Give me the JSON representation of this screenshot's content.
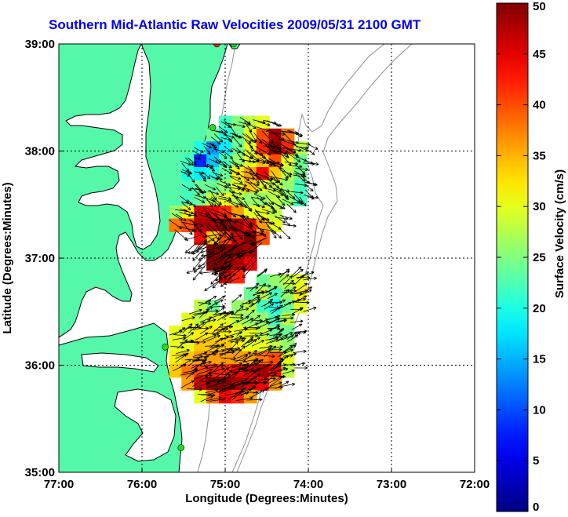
{
  "chart_data": {
    "type": "heatmap",
    "title": "Southern Mid-Atlantic Raw Velocities 2009/05/31 2100 GMT",
    "xlabel": "Longitude (Degrees:Minutes)",
    "ylabel": "Latitude (Degrees:Minutes)",
    "xlim": [
      -77,
      -72
    ],
    "ylim": [
      35,
      39
    ],
    "x_ticks": [
      {
        "value": -77,
        "label": "77:00"
      },
      {
        "value": -76,
        "label": "76:00"
      },
      {
        "value": -75,
        "label": "75:00"
      },
      {
        "value": -74,
        "label": "74:00"
      },
      {
        "value": -73,
        "label": "73:00"
      },
      {
        "value": -72,
        "label": "72:00"
      }
    ],
    "y_ticks": [
      {
        "value": 35,
        "label": "35:00"
      },
      {
        "value": 36,
        "label": "36:00"
      },
      {
        "value": 37,
        "label": "37:00"
      },
      {
        "value": 38,
        "label": "38:00"
      },
      {
        "value": 39,
        "label": "39:00"
      }
    ],
    "grid": true,
    "colorbar": {
      "label": "Surface Velocity (cm/s)",
      "min": 0,
      "max": 50,
      "ticks": [
        0,
        5,
        10,
        15,
        20,
        25,
        30,
        35,
        40,
        45,
        50
      ],
      "colormap": "jet"
    },
    "colors": {
      "land": "#55f8a8",
      "coast": "#000000",
      "bathymetry": "#909090",
      "grid": "#000000",
      "title": "#0000ee",
      "site_marker": "#22dd22",
      "site_marker_red": "#ee2222"
    },
    "velocity_regions": [
      {
        "name": "northern",
        "cells": [
          [
            -75.0,
            38.27,
            22
          ],
          [
            -74.85,
            38.27,
            25
          ],
          [
            -74.7,
            38.27,
            28
          ],
          [
            -74.55,
            38.27,
            30
          ],
          [
            -75.15,
            38.15,
            24
          ],
          [
            -75.0,
            38.15,
            20
          ],
          [
            -74.85,
            38.15,
            24
          ],
          [
            -74.7,
            38.15,
            30
          ],
          [
            -74.55,
            38.15,
            40
          ],
          [
            -74.4,
            38.15,
            48
          ],
          [
            -74.25,
            38.15,
            38
          ],
          [
            -75.3,
            38.03,
            20
          ],
          [
            -75.15,
            38.03,
            14
          ],
          [
            -75.0,
            38.03,
            18
          ],
          [
            -74.85,
            38.03,
            24
          ],
          [
            -74.7,
            38.03,
            30
          ],
          [
            -74.55,
            38.03,
            42
          ],
          [
            -74.4,
            38.03,
            50
          ],
          [
            -74.25,
            38.03,
            42
          ],
          [
            -74.1,
            38.03,
            28
          ],
          [
            -75.45,
            37.91,
            22
          ],
          [
            -75.3,
            37.91,
            8
          ],
          [
            -75.15,
            37.91,
            16
          ],
          [
            -75.0,
            37.91,
            22
          ],
          [
            -74.85,
            37.91,
            26
          ],
          [
            -74.7,
            37.91,
            30
          ],
          [
            -74.55,
            37.91,
            34
          ],
          [
            -74.4,
            37.91,
            40
          ],
          [
            -74.25,
            37.91,
            30
          ],
          [
            -74.1,
            37.91,
            24
          ],
          [
            -75.45,
            37.79,
            20
          ],
          [
            -75.3,
            37.79,
            18
          ],
          [
            -75.15,
            37.79,
            20
          ],
          [
            -75.0,
            37.79,
            24
          ],
          [
            -74.85,
            37.79,
            32
          ],
          [
            -74.7,
            37.79,
            36
          ],
          [
            -74.55,
            37.79,
            44
          ],
          [
            -74.4,
            37.79,
            34
          ],
          [
            -74.25,
            37.79,
            28
          ],
          [
            -74.1,
            37.79,
            24
          ],
          [
            -75.45,
            37.67,
            22
          ],
          [
            -75.3,
            37.67,
            24
          ],
          [
            -75.15,
            37.67,
            24
          ],
          [
            -75.0,
            37.67,
            26
          ],
          [
            -74.85,
            37.67,
            30
          ],
          [
            -74.7,
            37.67,
            34
          ],
          [
            -74.55,
            37.67,
            30
          ],
          [
            -74.4,
            37.67,
            28
          ],
          [
            -74.25,
            37.67,
            26
          ],
          [
            -74.1,
            37.67,
            22
          ],
          [
            -75.45,
            37.55,
            22
          ],
          [
            -75.3,
            37.55,
            24
          ],
          [
            -75.15,
            37.55,
            28
          ],
          [
            -75.0,
            37.55,
            30
          ],
          [
            -74.85,
            37.55,
            28
          ],
          [
            -74.7,
            37.55,
            26
          ],
          [
            -74.55,
            37.55,
            26
          ],
          [
            -74.4,
            37.55,
            28
          ],
          [
            -74.25,
            37.55,
            26
          ],
          [
            -74.1,
            37.55,
            22
          ],
          [
            -75.6,
            37.43,
            26
          ],
          [
            -75.45,
            37.43,
            32
          ],
          [
            -75.3,
            37.43,
            46
          ],
          [
            -75.15,
            37.43,
            44
          ],
          [
            -75.0,
            37.43,
            42
          ],
          [
            -74.85,
            37.43,
            36
          ],
          [
            -74.7,
            37.43,
            30
          ],
          [
            -74.55,
            37.43,
            30
          ],
          [
            -74.4,
            37.43,
            28
          ],
          [
            -75.6,
            37.31,
            38
          ],
          [
            -75.45,
            37.31,
            40
          ],
          [
            -75.3,
            37.31,
            48
          ],
          [
            -75.15,
            37.31,
            48
          ],
          [
            -75.0,
            37.31,
            50
          ],
          [
            -74.85,
            37.31,
            48
          ],
          [
            -74.7,
            37.31,
            44
          ],
          [
            -74.55,
            37.31,
            36
          ],
          [
            -74.4,
            37.31,
            30
          ],
          [
            -75.3,
            37.19,
            44
          ],
          [
            -75.15,
            37.19,
            34
          ],
          [
            -75.0,
            37.19,
            40
          ],
          [
            -74.85,
            37.19,
            46
          ],
          [
            -74.7,
            37.19,
            50
          ],
          [
            -74.55,
            37.19,
            40
          ],
          [
            -75.15,
            37.07,
            50
          ],
          [
            -75.0,
            37.07,
            50
          ],
          [
            -74.85,
            37.07,
            50
          ],
          [
            -74.7,
            37.07,
            48
          ],
          [
            -75.15,
            36.95,
            50
          ],
          [
            -75.0,
            36.95,
            50
          ],
          [
            -74.85,
            36.95,
            48
          ],
          [
            -74.7,
            36.95,
            44
          ],
          [
            -75.0,
            36.83,
            46
          ],
          [
            -74.85,
            36.83,
            42
          ]
        ]
      },
      {
        "name": "southern",
        "cells": [
          [
            -74.55,
            36.79,
            24
          ],
          [
            -74.4,
            36.79,
            26
          ],
          [
            -74.25,
            36.79,
            28
          ],
          [
            -74.1,
            36.79,
            30
          ],
          [
            -74.7,
            36.67,
            24
          ],
          [
            -74.55,
            36.67,
            28
          ],
          [
            -74.4,
            36.67,
            22
          ],
          [
            -74.25,
            36.67,
            26
          ],
          [
            -74.1,
            36.67,
            32
          ],
          [
            -75.3,
            36.55,
            28
          ],
          [
            -75.15,
            36.55,
            24
          ],
          [
            -74.85,
            36.55,
            26
          ],
          [
            -74.7,
            36.55,
            28
          ],
          [
            -74.55,
            36.55,
            22
          ],
          [
            -74.4,
            36.55,
            20
          ],
          [
            -74.25,
            36.55,
            24
          ],
          [
            -74.1,
            36.55,
            30
          ],
          [
            -75.45,
            36.43,
            30
          ],
          [
            -75.3,
            36.43,
            28
          ],
          [
            -75.15,
            36.43,
            30
          ],
          [
            -75.0,
            36.43,
            30
          ],
          [
            -74.85,
            36.43,
            28
          ],
          [
            -74.7,
            36.43,
            26
          ],
          [
            -74.55,
            36.43,
            26
          ],
          [
            -74.4,
            36.43,
            22
          ],
          [
            -74.25,
            36.43,
            28
          ],
          [
            -75.6,
            36.31,
            30
          ],
          [
            -75.45,
            36.31,
            30
          ],
          [
            -75.3,
            36.31,
            32
          ],
          [
            -75.15,
            36.31,
            32
          ],
          [
            -75.0,
            36.31,
            32
          ],
          [
            -74.85,
            36.31,
            30
          ],
          [
            -74.7,
            36.31,
            30
          ],
          [
            -74.55,
            36.31,
            28
          ],
          [
            -74.4,
            36.31,
            24
          ],
          [
            -74.25,
            36.31,
            24
          ],
          [
            -75.6,
            36.19,
            30
          ],
          [
            -75.45,
            36.19,
            30
          ],
          [
            -75.3,
            36.19,
            34
          ],
          [
            -75.15,
            36.19,
            34
          ],
          [
            -75.0,
            36.19,
            34
          ],
          [
            -74.85,
            36.19,
            32
          ],
          [
            -74.7,
            36.19,
            30
          ],
          [
            -74.55,
            36.19,
            30
          ],
          [
            -74.4,
            36.19,
            28
          ],
          [
            -74.25,
            36.19,
            26
          ],
          [
            -75.6,
            36.07,
            32
          ],
          [
            -75.45,
            36.07,
            34
          ],
          [
            -75.3,
            36.07,
            36
          ],
          [
            -75.15,
            36.07,
            36
          ],
          [
            -75.0,
            36.07,
            36
          ],
          [
            -74.85,
            36.07,
            36
          ],
          [
            -74.7,
            36.07,
            36
          ],
          [
            -74.55,
            36.07,
            38
          ],
          [
            -74.4,
            36.07,
            40
          ],
          [
            -74.25,
            36.07,
            30
          ],
          [
            -75.6,
            35.95,
            34
          ],
          [
            -75.45,
            35.95,
            38
          ],
          [
            -75.3,
            35.95,
            40
          ],
          [
            -75.15,
            35.95,
            42
          ],
          [
            -75.0,
            35.95,
            42
          ],
          [
            -74.85,
            35.95,
            44
          ],
          [
            -74.7,
            35.95,
            46
          ],
          [
            -74.55,
            35.95,
            48
          ],
          [
            -74.4,
            35.95,
            44
          ],
          [
            -74.25,
            35.95,
            28
          ],
          [
            -75.45,
            35.83,
            36
          ],
          [
            -75.3,
            35.83,
            46
          ],
          [
            -75.15,
            35.83,
            50
          ],
          [
            -75.0,
            35.83,
            50
          ],
          [
            -74.85,
            35.83,
            48
          ],
          [
            -74.7,
            35.83,
            46
          ],
          [
            -74.55,
            35.83,
            44
          ],
          [
            -74.4,
            35.83,
            36
          ],
          [
            -75.3,
            35.71,
            30
          ],
          [
            -75.15,
            35.71,
            38
          ],
          [
            -75.0,
            35.71,
            44
          ],
          [
            -74.85,
            35.71,
            42
          ],
          [
            -74.7,
            35.71,
            36
          ]
        ]
      }
    ],
    "sites": [
      {
        "lon": -75.1,
        "lat": 39.0,
        "kind": "red"
      },
      {
        "lon": -74.9,
        "lat": 39.0,
        "kind": "green"
      },
      {
        "lon": -75.15,
        "lat": 38.22,
        "kind": "green"
      },
      {
        "lon": -75.72,
        "lat": 36.17,
        "kind": "green"
      },
      {
        "lon": -75.53,
        "lat": 35.23,
        "kind": "green"
      }
    ]
  }
}
